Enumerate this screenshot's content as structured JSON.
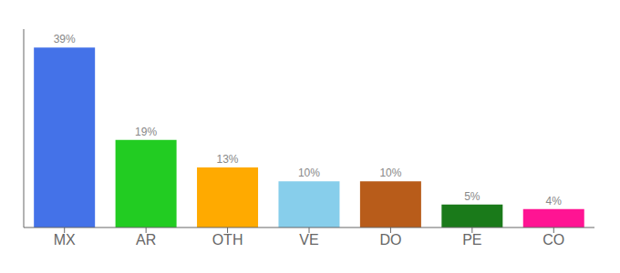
{
  "chart_data": {
    "type": "bar",
    "categories": [
      "MX",
      "AR",
      "OTH",
      "VE",
      "DO",
      "PE",
      "CO"
    ],
    "values": [
      39,
      19,
      13,
      10,
      10,
      5,
      4
    ],
    "value_labels": [
      "39%",
      "19%",
      "13%",
      "10%",
      "10%",
      "5%",
      "4%"
    ],
    "data_labels": true,
    "colors": [
      "#4472e8",
      "#22cc22",
      "#ffaa00",
      "#87ceeb",
      "#b85c1a",
      "#1a7a1a",
      "#ff1493"
    ],
    "ylim": [
      0,
      43
    ],
    "grid": false,
    "tick_labels": "x"
  }
}
